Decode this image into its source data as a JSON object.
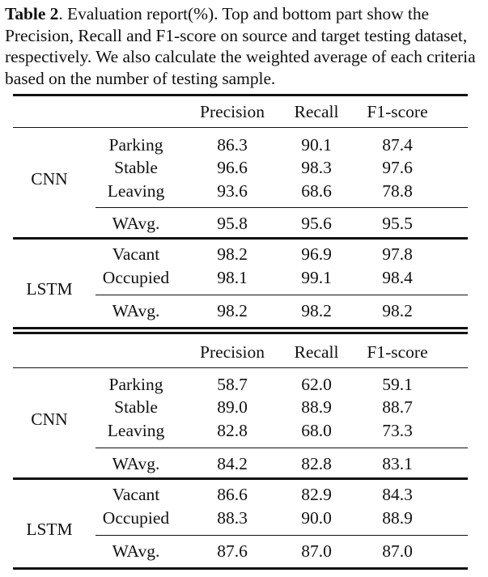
{
  "caption": {
    "label": "Table 2",
    "text": ". Evaluation report(%). Top and bottom part show the Precision, Recall and F1-score on source and target testing dataset, respectively. We also calculate the weighted average of each criteria based on the number of testing sample."
  },
  "tables": [
    {
      "headers": [
        "Precision",
        "Recall",
        "F1-score"
      ],
      "groups": [
        {
          "model": "CNN",
          "rows": [
            {
              "label": "Parking",
              "values": [
                "86.3",
                "90.1",
                "87.4"
              ]
            },
            {
              "label": "Stable",
              "values": [
                "96.6",
                "98.3",
                "97.6"
              ]
            },
            {
              "label": "Leaving",
              "values": [
                "93.6",
                "68.6",
                "78.8"
              ]
            }
          ],
          "wavg": {
            "label": "WAvg.",
            "values": [
              "95.8",
              "95.6",
              "95.5"
            ]
          }
        },
        {
          "model": "LSTM",
          "rows": [
            {
              "label": "Vacant",
              "values": [
                "98.2",
                "96.9",
                "97.8"
              ]
            },
            {
              "label": "Occupied",
              "values": [
                "98.1",
                "99.1",
                "98.4"
              ]
            }
          ],
          "wavg": {
            "label": "WAvg.",
            "values": [
              "98.2",
              "98.2",
              "98.2"
            ]
          }
        }
      ]
    },
    {
      "headers": [
        "Precision",
        "Recall",
        "F1-score"
      ],
      "groups": [
        {
          "model": "CNN",
          "rows": [
            {
              "label": "Parking",
              "values": [
                "58.7",
                "62.0",
                "59.1"
              ]
            },
            {
              "label": "Stable",
              "values": [
                "89.0",
                "88.9",
                "88.7"
              ]
            },
            {
              "label": "Leaving",
              "values": [
                "82.8",
                "68.0",
                "73.3"
              ]
            }
          ],
          "wavg": {
            "label": "WAvg.",
            "values": [
              "84.2",
              "82.8",
              "83.1"
            ]
          }
        },
        {
          "model": "LSTM",
          "rows": [
            {
              "label": "Vacant",
              "values": [
                "86.6",
                "82.9",
                "84.3"
              ]
            },
            {
              "label": "Occupied",
              "values": [
                "88.3",
                "90.0",
                "88.9"
              ]
            }
          ],
          "wavg": {
            "label": "WAvg.",
            "values": [
              "87.6",
              "87.0",
              "87.0"
            ]
          }
        }
      ]
    }
  ]
}
